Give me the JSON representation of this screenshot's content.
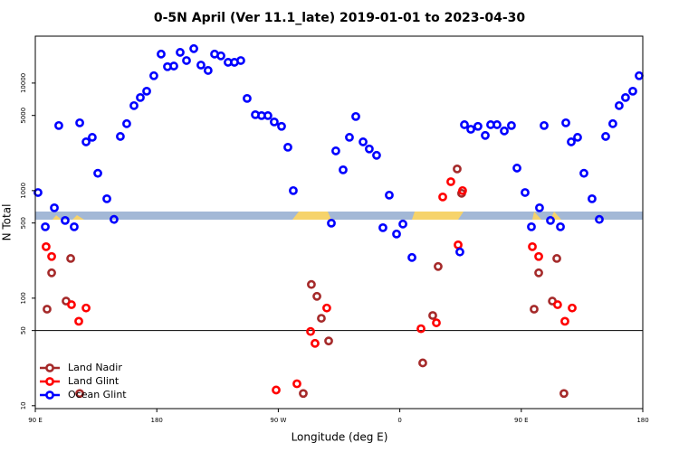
{
  "chart_data": {
    "type": "scatter",
    "title": "0-5N April (Ver 11.1_late)   2019-01-01 to 2023-04-30",
    "x_label": "Longitude (deg E)",
    "y_label": "N Total",
    "yscale": "log",
    "xlim": [
      90,
      540
    ],
    "ylim": [
      9.4,
      27300
    ],
    "xticks": [
      {
        "value": 90,
        "label": "90 E"
      },
      180,
      {
        "value": 270,
        "label": "90 W"
      },
      {
        "value": 360,
        "label": "0"
      },
      {
        "value": 450,
        "label": "90 E"
      },
      {
        "value": 540,
        "label": "180"
      }
    ],
    "yticks": [
      10,
      50,
      100,
      500,
      1000,
      5000,
      10000
    ],
    "reference_line": 50,
    "legend": "lower left",
    "series": [
      {
        "name": "Land Nadir",
        "color": "#a52a2a",
        "x": [
          98.7,
          102.1,
          112.8,
          116.2,
          122.9,
          288.5,
          294.5,
          298.6,
          301.9,
          307.3,
          377.0,
          384.4,
          388.4,
          402.5,
          405.8,
          459.5,
          462.9,
          473.0,
          476.3,
          481.6
        ],
        "values": [
          79,
          172,
          94,
          234,
          13,
          13,
          134,
          104,
          65,
          40,
          25,
          69,
          197,
          1590,
          944,
          79,
          172,
          94,
          234,
          13
        ]
      },
      {
        "name": "Land Glint",
        "color": "#ff0000",
        "x": [
          98.0,
          102.1,
          116.8,
          122.2,
          127.6,
          268.4,
          283.8,
          293.9,
          297.2,
          305.9,
          375.7,
          387.1,
          391.8,
          397.8,
          403.2,
          406.5,
          458.2,
          462.9,
          476.9,
          482.3,
          487.7
        ],
        "values": [
          301,
          244,
          87,
          61,
          81,
          14,
          16,
          49,
          38,
          81,
          52,
          59,
          873,
          1210,
          313,
          1000,
          301,
          244,
          87,
          61,
          81
        ]
      },
      {
        "name": "Ocean Glint",
        "color": "#0000ff",
        "x": [
          92.0,
          97.4,
          104.1,
          107.4,
          112.1,
          118.8,
          122.9,
          127.6,
          132.2,
          136.3,
          143.0,
          148.3,
          153.0,
          157.7,
          163.1,
          167.8,
          172.5,
          177.8,
          183.2,
          187.9,
          192.6,
          197.3,
          202.0,
          207.4,
          212.7,
          218.0,
          222.8,
          227.5,
          232.8,
          237.5,
          242.2,
          246.9,
          253.0,
          257.6,
          262.3,
          267.0,
          272.4,
          277.1,
          281.1,
          309.3,
          312.6,
          318.0,
          322.7,
          327.4,
          332.8,
          337.4,
          342.8,
          347.5,
          352.2,
          357.6,
          362.3,
          369.0,
          404.5,
          407.9,
          412.6,
          417.9,
          423.3,
          427.3,
          432.0,
          437.4,
          442.7,
          446.8,
          452.8,
          457.5,
          463.5,
          466.9,
          471.6,
          479.0,
          483.0,
          487.0,
          491.7,
          496.4,
          502.4,
          507.8,
          512.5,
          517.8,
          522.5,
          527.2,
          532.6,
          537.3
        ],
        "values": [
          960,
          461,
          692,
          4030,
          528,
          461,
          4270,
          2840,
          3130,
          1450,
          840,
          540,
          3190,
          4190,
          6170,
          7340,
          8400,
          11700,
          18600,
          14200,
          14400,
          19300,
          16200,
          20900,
          14700,
          13100,
          18600,
          17900,
          15600,
          15600,
          16200,
          7200,
          5080,
          4980,
          4980,
          4350,
          3960,
          2530,
          1000,
          498,
          2340,
          1560,
          3130,
          4890,
          2840,
          2440,
          2130,
          452,
          908,
          395,
          489,
          239,
          269,
          4100,
          3720,
          3960,
          3260,
          4100,
          4100,
          3590,
          4030,
          1620,
          960,
          461,
          692,
          4030,
          528,
          461,
          4270,
          2840,
          3130,
          1450,
          840,
          540,
          3190,
          4190,
          6170,
          7340,
          8400,
          11700
        ]
      }
    ]
  }
}
